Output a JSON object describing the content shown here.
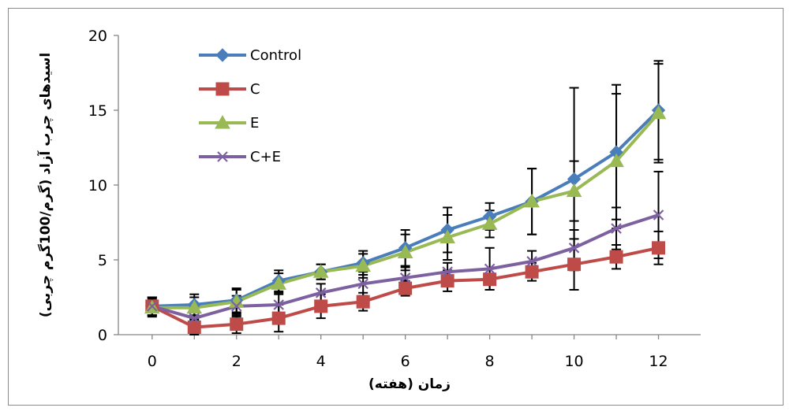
{
  "chart_data": {
    "type": "line",
    "title": "",
    "xlabel": "زمان (هفته)",
    "ylabel": "اسیدهای چرب آزاد (گرم/100گرم چربی)",
    "xlim": [
      -0.8,
      13.0
    ],
    "ylim": [
      0,
      20
    ],
    "xticks": [
      0,
      2,
      4,
      6,
      8,
      10,
      12
    ],
    "yticks": [
      0,
      5,
      10,
      15,
      20
    ],
    "grid": false,
    "legend_position": "top-left",
    "x": [
      0,
      1,
      2,
      3,
      4,
      5,
      6,
      7,
      8,
      9,
      10,
      11,
      12
    ],
    "series": [
      {
        "name": "Control",
        "color": "#4a7ebb",
        "marker": "diamond",
        "values": [
          1.9,
          2.0,
          2.3,
          3.6,
          4.2,
          4.8,
          5.8,
          7.0,
          7.9,
          8.9,
          10.4,
          12.2,
          15.0
        ],
        "err": [
          0.6,
          0.7,
          0.8,
          0.7,
          0.5,
          0.8,
          1.2,
          1.5,
          0.9,
          2.2,
          6.1,
          4.5,
          3.3
        ]
      },
      {
        "name": "C",
        "color": "#be4b48",
        "marker": "square",
        "values": [
          1.9,
          0.5,
          0.7,
          1.1,
          1.9,
          2.2,
          3.1,
          3.6,
          3.7,
          4.2,
          4.7,
          5.2,
          5.8
        ],
        "err": [
          0.6,
          0.5,
          0.6,
          0.9,
          0.8,
          0.6,
          0.5,
          0.7,
          0.7,
          0.6,
          1.7,
          0.8,
          1.1
        ]
      },
      {
        "name": "E",
        "color": "#98b954",
        "marker": "triangle",
        "values": [
          1.8,
          1.8,
          2.2,
          3.4,
          4.2,
          4.6,
          5.5,
          6.5,
          7.4,
          8.9,
          9.6,
          11.6,
          14.8
        ],
        "err": [
          0.6,
          0.7,
          0.8,
          0.7,
          0.5,
          0.8,
          1.2,
          1.5,
          0.9,
          2.2,
          2.0,
          4.5,
          3.3
        ]
      },
      {
        "name": "C+E",
        "color": "#7d60a0",
        "marker": "x",
        "values": [
          1.9,
          1.1,
          1.9,
          2.0,
          2.8,
          3.4,
          3.8,
          4.2,
          4.4,
          4.9,
          5.8,
          7.1,
          8.0
        ],
        "err": [
          0.6,
          0.6,
          0.7,
          0.8,
          0.6,
          0.8,
          0.7,
          0.6,
          1.4,
          0.7,
          1.2,
          1.4,
          2.9
        ]
      }
    ]
  }
}
